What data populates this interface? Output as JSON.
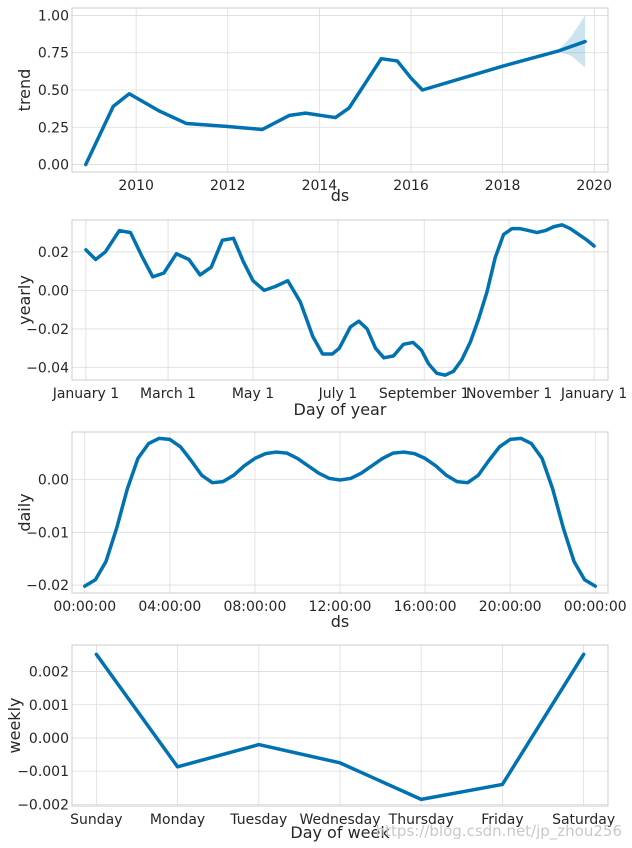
{
  "watermark": "https://blog.csdn.net/jp_zhou256",
  "colors": {
    "line": "#0072b2",
    "band": "#0072b2",
    "grid": "#dcdcdc",
    "frame": "#cccccc"
  },
  "chart_data": [
    {
      "id": "trend",
      "type": "line",
      "xlabel": "ds",
      "ylabel": "trend",
      "xlim": [
        2008.6,
        2020.3
      ],
      "ylim": [
        -0.05,
        1.05
      ],
      "xticks": [
        2010,
        2012,
        2014,
        2016,
        2018,
        2020
      ],
      "xtick_labels": [
        "2010",
        "2012",
        "2014",
        "2016",
        "2018",
        "2020"
      ],
      "yticks": [
        0.0,
        0.25,
        0.5,
        0.75,
        1.0
      ],
      "ytick_labels": [
        "0.00",
        "0.25",
        "0.50",
        "0.75",
        "1.00"
      ],
      "x": [
        2008.9,
        2009.5,
        2009.85,
        2010.5,
        2011.1,
        2012.0,
        2012.75,
        2013.35,
        2013.7,
        2014.35,
        2014.65,
        2015.35,
        2015.7,
        2016.0,
        2016.25,
        2018.0,
        2019.2,
        2019.8
      ],
      "y": [
        0.0,
        0.39,
        0.475,
        0.36,
        0.275,
        0.255,
        0.235,
        0.33,
        0.345,
        0.315,
        0.38,
        0.71,
        0.695,
        0.58,
        0.5,
        0.66,
        0.76,
        0.825
      ],
      "band": {
        "x": [
          2019.2,
          2019.5,
          2019.8
        ],
        "upper": [
          0.76,
          0.86,
          1.0
        ],
        "lower": [
          0.76,
          0.73,
          0.65
        ]
      }
    },
    {
      "id": "yearly",
      "type": "line",
      "xlabel": "Day of year",
      "ylabel": "yearly",
      "xlim": [
        -10,
        375
      ],
      "ylim": [
        -0.0465,
        0.0365
      ],
      "xticks": [
        0,
        59,
        120,
        181,
        243,
        304,
        365
      ],
      "xtick_labels": [
        "January 1",
        "March 1",
        "May 1",
        "July 1",
        "September 1",
        "November 1",
        "January 1"
      ],
      "yticks": [
        -0.04,
        -0.02,
        0.0,
        0.02
      ],
      "ytick_labels": [
        "−0.04",
        "−0.02",
        "0.00",
        "0.02"
      ],
      "x": [
        0,
        7,
        14,
        24,
        32,
        40,
        48,
        56,
        65,
        74,
        82,
        90,
        98,
        106,
        113,
        120,
        128,
        136,
        145,
        154,
        163,
        170,
        177,
        182,
        190,
        196,
        202,
        208,
        214,
        221,
        228,
        235,
        241,
        246,
        252,
        258,
        264,
        270,
        276,
        282,
        288,
        294,
        300,
        306,
        312,
        318,
        324,
        330,
        336,
        342,
        348,
        354,
        360,
        365
      ],
      "y": [
        0.021,
        0.016,
        0.02,
        0.031,
        0.03,
        0.018,
        0.007,
        0.009,
        0.019,
        0.016,
        0.008,
        0.012,
        0.026,
        0.027,
        0.015,
        0.005,
        0.0,
        0.002,
        0.005,
        -0.006,
        -0.024,
        -0.033,
        -0.033,
        -0.03,
        -0.019,
        -0.016,
        -0.02,
        -0.03,
        -0.035,
        -0.034,
        -0.028,
        -0.027,
        -0.031,
        -0.038,
        -0.043,
        -0.044,
        -0.042,
        -0.036,
        -0.027,
        -0.015,
        -0.001,
        0.017,
        0.029,
        0.032,
        0.032,
        0.031,
        0.03,
        0.031,
        0.033,
        0.034,
        0.032,
        0.029,
        0.026,
        0.023
      ]
    },
    {
      "id": "daily",
      "type": "line",
      "xlabel": "ds",
      "ylabel": "daily",
      "xlim": [
        -0.6,
        24.6
      ],
      "ylim": [
        -0.0215,
        0.009
      ],
      "xticks": [
        0,
        4,
        8,
        12,
        16,
        20,
        24
      ],
      "xtick_labels": [
        "00:00:00",
        "04:00:00",
        "08:00:00",
        "12:00:00",
        "16:00:00",
        "20:00:00",
        "00:00:00"
      ],
      "yticks": [
        -0.02,
        -0.01,
        0.0
      ],
      "ytick_labels": [
        "−0.02",
        "−0.01",
        "0.00"
      ],
      "x": [
        0,
        0.5,
        1,
        1.5,
        2,
        2.5,
        3,
        3.5,
        4,
        4.5,
        5,
        5.5,
        6,
        6.5,
        7,
        7.5,
        8,
        8.5,
        9,
        9.5,
        10,
        10.5,
        11,
        11.5,
        12,
        12.5,
        13,
        13.5,
        14,
        14.5,
        15,
        15.5,
        16,
        16.5,
        17,
        17.5,
        18,
        18.5,
        19,
        19.5,
        20,
        20.5,
        21,
        21.5,
        22,
        22.5,
        23,
        23.5,
        24
      ],
      "y": [
        -0.0202,
        -0.019,
        -0.0155,
        -0.0092,
        -0.0018,
        0.004,
        0.0068,
        0.0078,
        0.0076,
        0.0062,
        0.0036,
        0.0008,
        -0.0006,
        -0.0004,
        0.0008,
        0.0026,
        0.004,
        0.0049,
        0.0052,
        0.005,
        0.004,
        0.0026,
        0.0012,
        0.0002,
        -0.0001,
        0.0002,
        0.0012,
        0.0026,
        0.004,
        0.005,
        0.0052,
        0.0049,
        0.004,
        0.0026,
        0.0008,
        -0.0004,
        -0.0006,
        0.0008,
        0.0036,
        0.0062,
        0.0076,
        0.0078,
        0.0068,
        0.004,
        -0.0018,
        -0.0092,
        -0.0155,
        -0.019,
        -0.0202
      ]
    },
    {
      "id": "weekly",
      "type": "line",
      "xlabel": "Day of week",
      "ylabel": "weekly",
      "xlim": [
        -0.3,
        6.3
      ],
      "ylim": [
        -0.00205,
        0.0028
      ],
      "xticks": [
        0,
        1,
        2,
        3,
        4,
        5,
        6
      ],
      "xtick_labels": [
        "Sunday",
        "Monday",
        "Tuesday",
        "Wednesday",
        "Thursday",
        "Friday",
        "Saturday"
      ],
      "yticks": [
        -0.002,
        -0.001,
        0.0,
        0.001,
        0.002
      ],
      "ytick_labels": [
        "−0.002",
        "−0.001",
        "0.000",
        "0.001",
        "0.002"
      ],
      "x": [
        0,
        1,
        2,
        3,
        4,
        5,
        6
      ],
      "y": [
        0.00252,
        -0.00087,
        -0.0002,
        -0.00075,
        -0.00185,
        -0.0014,
        0.00252
      ]
    }
  ]
}
